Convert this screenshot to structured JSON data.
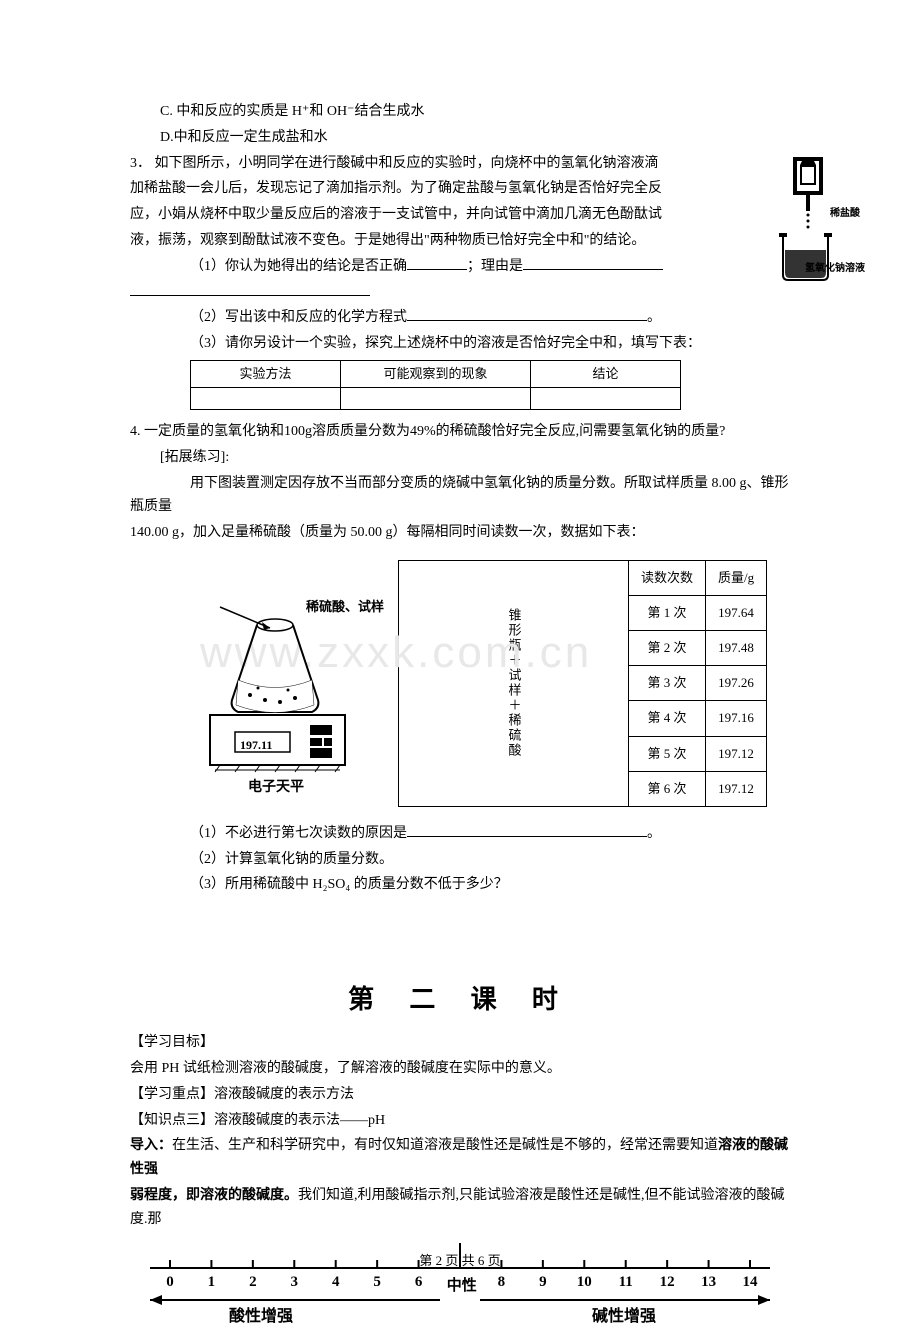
{
  "optionC": "C. 中和反应的实质是 H⁺和 OH⁻结合生成水",
  "optionD": "D.中和反应一定生成盐和水",
  "q3": {
    "intro1": "3．  如下图所示，小明同学在进行酸碱中和反应的实验时，向烧杯中的氢氧化钠溶液滴",
    "intro2": "加稀盐酸一会儿后，发现忘记了滴加指示剂。为了确定盐酸与氢氧化钠是否恰好完全反",
    "intro3": "应，小娟从烧杯中取少量反应后的溶液于一支试管中，并向试管中滴加几滴无色酚酞试",
    "intro4": "液，振荡，观察到酚酞试液不变色。于是她得出\"两种物质已恰好完全中和\"的结论。",
    "sub1": "（1）你认为她得出的结论是否正确",
    "sub1b": "；理由是",
    "sub2": "（2）写出该中和反应的化学方程式",
    "sub3": "（3）请你另设计一个实验，探究上述烧杯中的溶液是否恰好完全中和，填写下表：",
    "tblA": "实验方法",
    "tblB": "可能观察到的现象",
    "tblC": "结论"
  },
  "imgLabels": {
    "hcl": "稀盐酸",
    "naoh": "氢氧化钠溶液"
  },
  "q4": "4. 一定质量的氢氧化钠和100g溶质质量分数为49%的稀硫酸恰好完全反应,问需要氢氧化钠的质量?",
  "ext": {
    "head": "[拓展练习]:",
    "p1": "用下图装置测定因存放不当而部分变质的烧碱中氢氧化钠的质量分数。所取试样质量 8.00 g、锥形瓶质量",
    "p2": "140.00 g，加入足量稀硫酸（质量为 50.00 g）每隔相同时间读数一次，数据如下表：",
    "figA": "稀硫酸、试样",
    "figB": "电子天平",
    "balanceReading": "197.11",
    "vcell": "锥形瓶＋试样＋稀硫酸",
    "th1": "读数次数",
    "th2": "质量/g",
    "rows": [
      {
        "n": "第 1 次",
        "v": "197.64"
      },
      {
        "n": "第 2 次",
        "v": "197.48"
      },
      {
        "n": "第 3 次",
        "v": "197.26"
      },
      {
        "n": "第 4 次",
        "v": "197.16"
      },
      {
        "n": "第 5 次",
        "v": "197.12"
      },
      {
        "n": "第 6 次",
        "v": "197.12"
      }
    ],
    "sub1": "（1）不必进行第七次读数的原因是",
    "sub2": "（2）计算氢氧化钠的质量分数。",
    "sub3": "（3）所用稀硫酸中 H₂SO₄ 的质量分数不低于多少？"
  },
  "watermark": "www.zxxk.com.cn",
  "section2": {
    "title": "第  二  课  时",
    "obj": "【学习目标】",
    "objTxt": "会用 PH 试纸检测溶液的酸碱度，了解溶液的酸碱度在实际中的意义。",
    "focus": "【学习重点】溶液酸碱度的表示方法",
    "kp": "【知识点三】溶液酸碱度的表示法——pH",
    "intro": "导入：",
    "introTxt1": "在生活、生产和科学研究中，有时仅知道溶液是酸性还是碱性是不够的，经常还需要知道",
    "introBold1": "溶液的酸碱性强",
    "introBold2": "弱程度，即溶液的酸碱度。",
    "introTxt2": "我们知道,利用酸碱指示剂,只能试验溶液是酸性还是碱性,但不能试验溶液的酸碱度.那"
  },
  "phScale": {
    "ticks": [
      "0",
      "1",
      "2",
      "3",
      "4",
      "5",
      "6",
      "7",
      "8",
      "9",
      "10",
      "11",
      "12",
      "13",
      "14"
    ],
    "left": "酸性增强",
    "mid": "中性",
    "right": "碱性增强"
  },
  "footer": "第 2 页 共 6 页"
}
